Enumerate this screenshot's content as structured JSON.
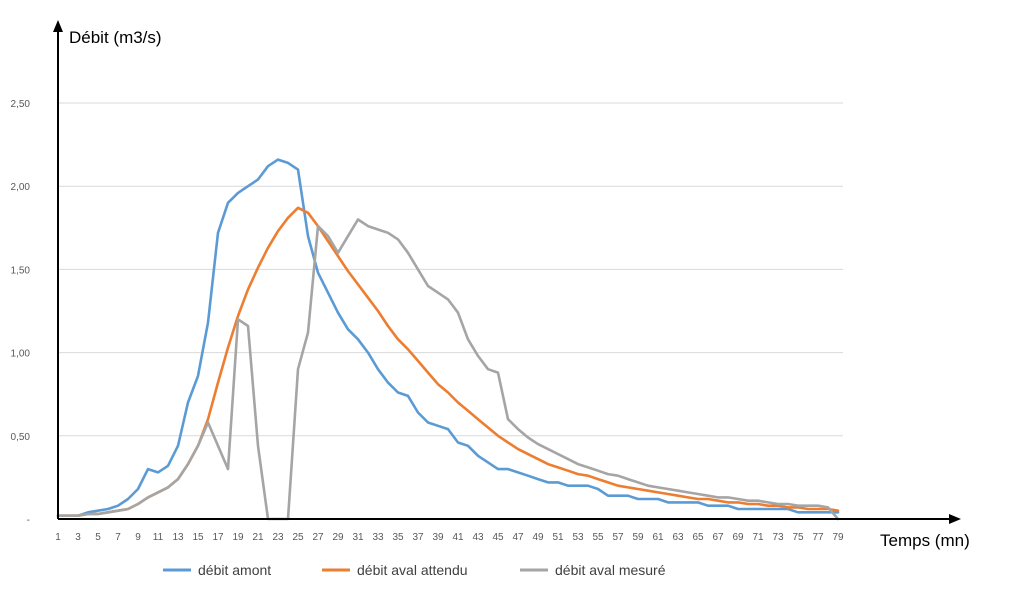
{
  "chart_data": {
    "type": "line",
    "ylabel": "Débit (m3/s)",
    "xlabel": "Temps (mn)",
    "x": [
      1,
      2,
      3,
      4,
      5,
      6,
      7,
      8,
      9,
      10,
      11,
      12,
      13,
      14,
      15,
      16,
      17,
      18,
      19,
      20,
      21,
      22,
      23,
      24,
      25,
      26,
      27,
      28,
      29,
      30,
      31,
      32,
      33,
      34,
      35,
      36,
      37,
      38,
      39,
      40,
      41,
      42,
      43,
      44,
      45,
      46,
      47,
      48,
      49,
      50,
      51,
      52,
      53,
      54,
      55,
      56,
      57,
      58,
      59,
      60,
      61,
      62,
      63,
      64,
      65,
      66,
      67,
      68,
      69,
      70,
      71,
      72,
      73,
      74,
      75,
      76,
      77,
      78,
      79
    ],
    "xticks": [
      "1",
      "3",
      "5",
      "7",
      "9",
      "11",
      "13",
      "15",
      "17",
      "19",
      "21",
      "23",
      "25",
      "27",
      "29",
      "31",
      "33",
      "35",
      "37",
      "39",
      "41",
      "43",
      "45",
      "47",
      "49",
      "51",
      "53",
      "55",
      "57",
      "59",
      "61",
      "63",
      "65",
      "67",
      "69",
      "71",
      "73",
      "75",
      "77",
      "79"
    ],
    "yticks": [
      "-",
      "0,50",
      "1,00",
      "1,50",
      "2,00",
      "2,50"
    ],
    "ylim": [
      0,
      2.5
    ],
    "xlim": [
      1,
      79
    ],
    "grid": "horizontal",
    "legend": "bottom",
    "series": [
      {
        "name": "débit amont",
        "color": "#5b9bd5",
        "values": [
          0.02,
          0.02,
          0.02,
          0.04,
          0.05,
          0.06,
          0.08,
          0.12,
          0.18,
          0.3,
          0.28,
          0.32,
          0.44,
          0.7,
          0.86,
          1.18,
          1.72,
          1.9,
          1.96,
          2.0,
          2.04,
          2.12,
          2.16,
          2.14,
          2.1,
          1.7,
          1.48,
          1.36,
          1.24,
          1.14,
          1.08,
          1.0,
          0.9,
          0.82,
          0.76,
          0.74,
          0.64,
          0.58,
          0.56,
          0.54,
          0.46,
          0.44,
          0.38,
          0.34,
          0.3,
          0.3,
          0.28,
          0.26,
          0.24,
          0.22,
          0.22,
          0.2,
          0.2,
          0.2,
          0.18,
          0.14,
          0.14,
          0.14,
          0.12,
          0.12,
          0.12,
          0.1,
          0.1,
          0.1,
          0.1,
          0.08,
          0.08,
          0.08,
          0.06,
          0.06,
          0.06,
          0.06,
          0.06,
          0.06,
          0.04,
          0.04,
          0.04,
          0.04,
          0.04
        ]
      },
      {
        "name": "débit aval attendu",
        "color": "#ed7d31",
        "values": [
          0.02,
          0.02,
          0.02,
          0.03,
          0.03,
          0.04,
          0.05,
          0.06,
          0.09,
          0.13,
          0.16,
          0.19,
          0.24,
          0.33,
          0.44,
          0.6,
          0.82,
          1.03,
          1.22,
          1.38,
          1.51,
          1.63,
          1.73,
          1.81,
          1.87,
          1.84,
          1.76,
          1.67,
          1.58,
          1.49,
          1.41,
          1.33,
          1.25,
          1.16,
          1.08,
          1.02,
          0.95,
          0.88,
          0.81,
          0.76,
          0.7,
          0.65,
          0.6,
          0.55,
          0.5,
          0.46,
          0.42,
          0.39,
          0.36,
          0.33,
          0.31,
          0.29,
          0.27,
          0.26,
          0.24,
          0.22,
          0.2,
          0.19,
          0.18,
          0.17,
          0.16,
          0.15,
          0.14,
          0.13,
          0.12,
          0.12,
          0.11,
          0.1,
          0.1,
          0.09,
          0.09,
          0.08,
          0.08,
          0.07,
          0.07,
          0.06,
          0.06,
          0.06,
          0.05
        ]
      },
      {
        "name": "débit aval mesuré",
        "color": "#a5a5a5",
        "values": [
          0.02,
          0.02,
          0.02,
          0.03,
          0.03,
          0.04,
          0.05,
          0.06,
          0.09,
          0.13,
          0.16,
          0.19,
          0.24,
          0.33,
          0.44,
          0.58,
          0.44,
          0.3,
          1.2,
          1.16,
          0.44,
          0.0,
          0.0,
          0.0,
          0.9,
          1.12,
          1.76,
          1.7,
          1.6,
          1.7,
          1.8,
          1.76,
          1.74,
          1.72,
          1.68,
          1.6,
          1.5,
          1.4,
          1.36,
          1.32,
          1.24,
          1.08,
          0.98,
          0.9,
          0.88,
          0.6,
          0.54,
          0.49,
          0.45,
          0.42,
          0.39,
          0.36,
          0.33,
          0.31,
          0.29,
          0.27,
          0.26,
          0.24,
          0.22,
          0.2,
          0.19,
          0.18,
          0.17,
          0.16,
          0.15,
          0.14,
          0.13,
          0.13,
          0.12,
          0.11,
          0.11,
          0.1,
          0.09,
          0.09,
          0.08,
          0.08,
          0.08,
          0.07,
          0.0
        ]
      }
    ]
  }
}
